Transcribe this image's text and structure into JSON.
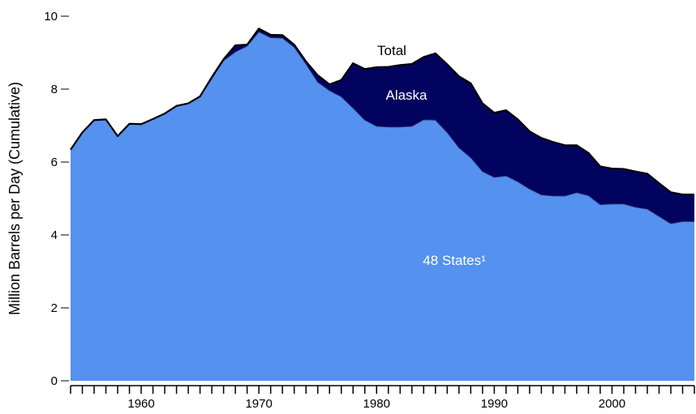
{
  "colors": {
    "states48": "#5591ee",
    "alaska": "#02035e",
    "total_line": "#000000",
    "background": "#ffffff"
  },
  "chart_data": {
    "type": "area",
    "stacked": true,
    "title": "",
    "xlabel": "",
    "ylabel": "Million Barrels per Day (Cumulative)",
    "xlim": [
      1954,
      2007
    ],
    "ylim": [
      0,
      10
    ],
    "x_ticks": [
      1960,
      1970,
      1980,
      1990,
      2000
    ],
    "y_ticks": [
      0,
      2,
      4,
      6,
      8,
      10
    ],
    "x": [
      1954,
      1955,
      1956,
      1957,
      1958,
      1959,
      1960,
      1961,
      1962,
      1963,
      1964,
      1965,
      1966,
      1967,
      1968,
      1969,
      1970,
      1971,
      1972,
      1973,
      1974,
      1975,
      1976,
      1977,
      1978,
      1979,
      1980,
      1981,
      1982,
      1983,
      1984,
      1985,
      1986,
      1987,
      1988,
      1989,
      1990,
      1991,
      1992,
      1993,
      1994,
      1995,
      1996,
      1997,
      1998,
      1999,
      2000,
      2001,
      2002,
      2003,
      2004,
      2005,
      2006,
      2007
    ],
    "series": [
      {
        "name": "48 States¹",
        "values": [
          6.34,
          6.81,
          7.15,
          7.17,
          6.71,
          7.05,
          7.04,
          7.18,
          7.33,
          7.54,
          7.61,
          7.8,
          8.29,
          8.78,
          9.02,
          9.18,
          9.57,
          9.41,
          9.4,
          9.15,
          8.69,
          8.19,
          7.96,
          7.79,
          7.48,
          7.15,
          6.98,
          6.96,
          6.96,
          6.98,
          7.16,
          7.15,
          6.81,
          6.39,
          6.12,
          5.74,
          5.58,
          5.62,
          5.46,
          5.26,
          5.1,
          5.07,
          5.07,
          5.16,
          5.08,
          4.83,
          4.85,
          4.85,
          4.76,
          4.71,
          4.51,
          4.31,
          4.37,
          4.37
        ]
      },
      {
        "name": "Alaska",
        "values": [
          0,
          0,
          0,
          0,
          0,
          0,
          0,
          0,
          0,
          0,
          0,
          0,
          0.04,
          0.04,
          0.18,
          0.04,
          0.09,
          0.08,
          0.08,
          0.07,
          0.07,
          0.19,
          0.17,
          0.46,
          1.23,
          1.4,
          1.62,
          1.65,
          1.7,
          1.71,
          1.72,
          1.83,
          1.87,
          1.96,
          2.04,
          1.87,
          1.77,
          1.8,
          1.71,
          1.58,
          1.56,
          1.48,
          1.39,
          1.3,
          1.17,
          1.05,
          0.97,
          0.96,
          0.98,
          0.97,
          0.91,
          0.86,
          0.74,
          0.74
        ]
      }
    ],
    "labels": {
      "total": "Total",
      "alaska": "Alaska",
      "states48": "48 States¹"
    }
  }
}
